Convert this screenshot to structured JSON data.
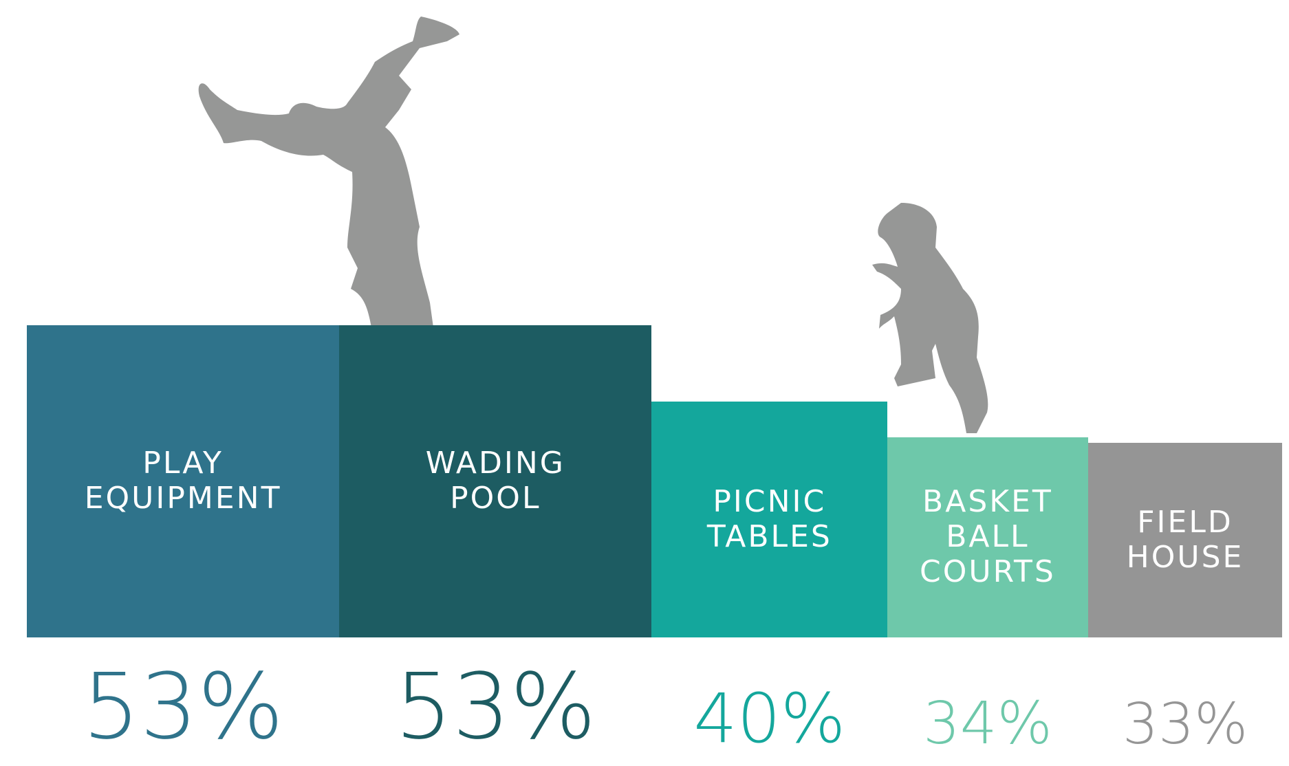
{
  "chart_data": {
    "type": "square-bar",
    "categories": [
      "PLAY EQUIPMENT",
      "WADING POOL",
      "PICNIC TABLES",
      "BASKET BALL COURTS",
      "FIELD HOUSE"
    ],
    "values": [
      53,
      53,
      40,
      34,
      33
    ],
    "value_labels": [
      "53%",
      "53%",
      "40%",
      "34%",
      "33%"
    ],
    "colors": [
      "#2f738b",
      "#1d5c62",
      "#14a79c",
      "#6ec8aa",
      "#959595"
    ]
  }
}
